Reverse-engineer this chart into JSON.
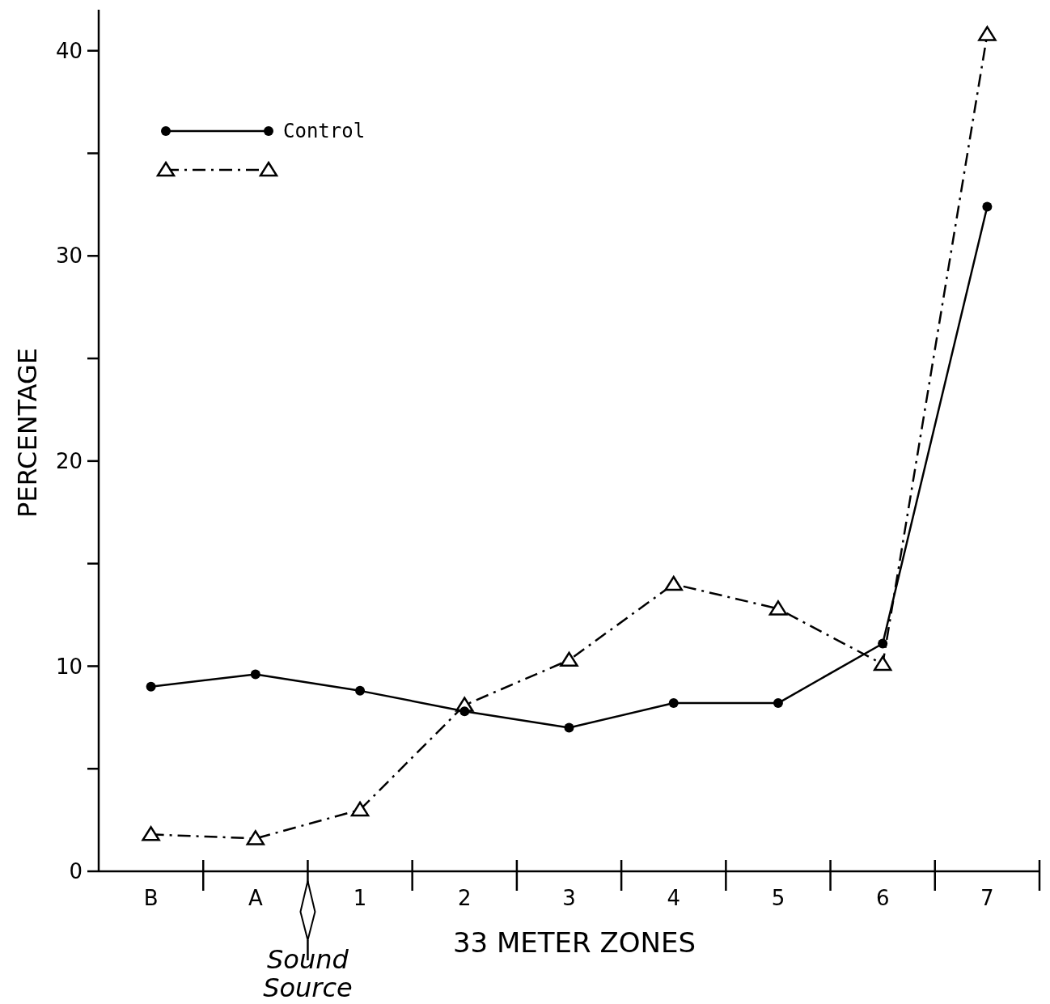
{
  "chart_data": {
    "type": "line",
    "xlabel": "33 METER ZONES",
    "ylabel": "PERCENTAGE",
    "categories": [
      "B",
      "A",
      "1",
      "2",
      "3",
      "4",
      "5",
      "6",
      "7"
    ],
    "series": [
      {
        "name": "Control",
        "color": "#000000",
        "marker": "circle",
        "line_style": "solid",
        "values": [
          9.0,
          9.6,
          8.8,
          7.8,
          7.0,
          8.2,
          8.2,
          11.1,
          32.4
        ]
      },
      {
        "color": "#000000",
        "marker": "triangle",
        "line_style": "dashed",
        "values": [
          1.8,
          1.6,
          3.0,
          8.1,
          10.3,
          14.0,
          12.8,
          10.1,
          40.8
        ]
      }
    ],
    "ylim": [
      0,
      42
    ],
    "yticks": [
      0,
      {
        "value": 5,
        "label": null
      },
      10,
      {
        "value": 15,
        "label": null
      },
      20,
      {
        "value": 25,
        "label": null
      },
      30,
      {
        "value": 35,
        "label": null
      },
      40
    ],
    "grid": false,
    "legend": "top left",
    "annotations": [
      "Sound Source"
    ]
  }
}
